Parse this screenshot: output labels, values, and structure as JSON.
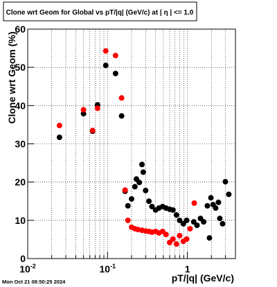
{
  "chart_data": {
    "type": "scatter",
    "title": "Clone wrt Geom for Global vs pT/|q| (GeV/c) at |  η | <= 1.0",
    "xlabel": "pT/|q| (GeV/c)",
    "ylabel": "Clone wrt Geom (%)",
    "footer": "Mon Oct 21 08:50:25 2024",
    "xscale": "log",
    "grid": true,
    "xlim": [
      0.01,
      4
    ],
    "ylim": [
      0,
      60
    ],
    "xticks": [
      {
        "value": 0.01,
        "label": "10",
        "exponent": "-2"
      },
      {
        "value": 0.1,
        "label": "10",
        "exponent": "-1"
      },
      1
    ],
    "xminorticks": [
      0.02,
      0.03,
      0.04,
      0.05,
      0.06,
      0.07,
      0.08,
      0.09,
      0.2,
      0.3,
      0.4,
      0.5,
      0.6,
      0.7,
      0.8,
      0.9,
      2,
      3,
      4
    ],
    "yticks": [
      0,
      10,
      20,
      30,
      40,
      50,
      60
    ],
    "series": [
      {
        "color": "#000000",
        "x": [
          0.025,
          0.05,
          0.065,
          0.075,
          0.095,
          0.126,
          0.15,
          0.166,
          0.18,
          0.2,
          0.22,
          0.23,
          0.25,
          0.27,
          0.28,
          0.3,
          0.33,
          0.36,
          0.4,
          0.44,
          0.49,
          0.54,
          0.6,
          0.66,
          0.73,
          0.8,
          0.89,
          0.98,
          1.2,
          1.32,
          1.46,
          1.6,
          1.78,
          1.97,
          2.1,
          1.89,
          2.26,
          2.45,
          2.55,
          2.76,
          2.99,
          3.3
        ],
        "values": [
          31.7,
          37.9,
          33.3,
          40.2,
          50.5,
          48.4,
          37.3,
          17.6,
          13.8,
          15.6,
          18.8,
          20.8,
          19.9,
          24.6,
          22.6,
          17.8,
          15,
          13.6,
          12.7,
          13.2,
          13.6,
          13.2,
          12.9,
          12.7,
          11.4,
          10,
          9.1,
          10,
          9.6,
          8.7,
          10.5,
          9.6,
          13.8,
          15.9,
          14.1,
          5.4,
          13.2,
          14.7,
          10.5,
          9.1,
          20.1,
          16.8
        ]
      },
      {
        "color": "#ff0000",
        "x": [
          0.025,
          0.05,
          0.065,
          0.075,
          0.095,
          0.126,
          0.15,
          0.166,
          0.18,
          0.2,
          0.22,
          0.24,
          0.27,
          0.3,
          0.33,
          0.36,
          0.4,
          0.44,
          0.49,
          0.54,
          0.6,
          0.66,
          0.73,
          0.8,
          0.89,
          0.98,
          1.08,
          1.22
        ],
        "values": [
          34.8,
          38.9,
          33.5,
          39.3,
          54.3,
          53.1,
          42,
          17.9,
          10,
          8.2,
          7.8,
          7.6,
          7.4,
          7.2,
          7.1,
          6.9,
          7.1,
          6.7,
          7.1,
          6.3,
          4.2,
          5.1,
          3.8,
          6,
          4.5,
          5.1,
          7.8,
          14.5
        ]
      }
    ]
  }
}
